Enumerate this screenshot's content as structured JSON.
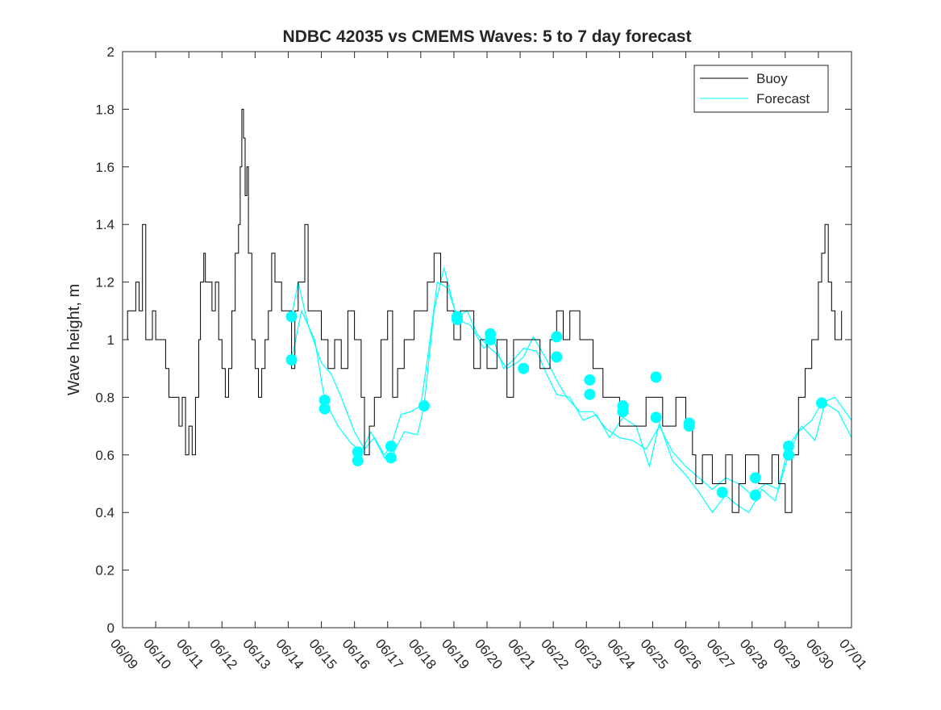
{
  "chart_data": {
    "type": "line",
    "title": "NDBC 42035 vs CMEMS Waves: 5 to 7 day forecast",
    "xlabel": "",
    "ylabel": "Wave height, m",
    "xlim": [
      "06/09",
      "07/01"
    ],
    "ylim": [
      0,
      2
    ],
    "x_tick_labels": [
      "06/09",
      "06/10",
      "06/11",
      "06/12",
      "06/13",
      "06/14",
      "06/15",
      "06/16",
      "06/17",
      "06/18",
      "06/19",
      "06/20",
      "06/21",
      "06/22",
      "06/23",
      "06/24",
      "06/25",
      "06/26",
      "06/27",
      "06/28",
      "06/29",
      "06/30",
      "07/01"
    ],
    "y_ticks": [
      0,
      0.2,
      0.4,
      0.6,
      0.8,
      1,
      1.2,
      1.4,
      1.6,
      1.8,
      2
    ],
    "y_tick_labels": [
      "0",
      "0.2",
      "0.4",
      "0.6",
      "0.8",
      "1",
      "1.2",
      "1.4",
      "1.6",
      "1.8",
      "2"
    ],
    "grid": false,
    "legend": {
      "position": "top-right",
      "entries": [
        "Buoy",
        "Forecast"
      ]
    },
    "colors": {
      "buoy": "#000000",
      "forecast": "#00ffff"
    },
    "series": [
      {
        "name": "Buoy",
        "x_unit": "days since 06/09",
        "points": [
          [
            0,
            1.0
          ],
          [
            0.15,
            1.1
          ],
          [
            0.4,
            1.2
          ],
          [
            0.5,
            1.1
          ],
          [
            0.6,
            1.4
          ],
          [
            0.7,
            1.0
          ],
          [
            0.9,
            1.1
          ],
          [
            1.0,
            1.0
          ],
          [
            1.2,
            1.0
          ],
          [
            1.3,
            0.9
          ],
          [
            1.4,
            0.8
          ],
          [
            1.6,
            0.8
          ],
          [
            1.7,
            0.7
          ],
          [
            1.8,
            0.8
          ],
          [
            1.9,
            0.6
          ],
          [
            2.0,
            0.7
          ],
          [
            2.1,
            0.6
          ],
          [
            2.2,
            0.8
          ],
          [
            2.3,
            1.0
          ],
          [
            2.35,
            1.2
          ],
          [
            2.45,
            1.3
          ],
          [
            2.5,
            1.2
          ],
          [
            2.6,
            1.2
          ],
          [
            2.7,
            1.1
          ],
          [
            2.8,
            1.2
          ],
          [
            2.9,
            1.0
          ],
          [
            3.0,
            0.9
          ],
          [
            3.1,
            0.8
          ],
          [
            3.2,
            0.9
          ],
          [
            3.3,
            1.1
          ],
          [
            3.4,
            1.3
          ],
          [
            3.5,
            1.4
          ],
          [
            3.55,
            1.6
          ],
          [
            3.6,
            1.8
          ],
          [
            3.65,
            1.7
          ],
          [
            3.7,
            1.5
          ],
          [
            3.75,
            1.6
          ],
          [
            3.8,
            1.3
          ],
          [
            3.9,
            1.0
          ],
          [
            4.0,
            0.9
          ],
          [
            4.1,
            0.8
          ],
          [
            4.2,
            0.9
          ],
          [
            4.3,
            1.0
          ],
          [
            4.4,
            1.1
          ],
          [
            4.5,
            1.3
          ],
          [
            4.6,
            1.2
          ],
          [
            4.8,
            1.1
          ],
          [
            5.0,
            1.1
          ],
          [
            5.1,
            0.9
          ],
          [
            5.2,
            1.1
          ],
          [
            5.3,
            1.2
          ],
          [
            5.4,
            1.2
          ],
          [
            5.5,
            1.4
          ],
          [
            5.6,
            1.1
          ],
          [
            5.8,
            1.1
          ],
          [
            6.0,
            1.0
          ],
          [
            6.2,
            0.9
          ],
          [
            6.4,
            1.0
          ],
          [
            6.6,
            0.9
          ],
          [
            6.8,
            1.1
          ],
          [
            7.0,
            1.0
          ],
          [
            7.2,
            0.8
          ],
          [
            7.3,
            0.6
          ],
          [
            7.45,
            0.7
          ],
          [
            7.6,
            0.8
          ],
          [
            7.8,
            1.0
          ],
          [
            8.0,
            1.1
          ],
          [
            8.15,
            0.8
          ],
          [
            8.3,
            0.9
          ],
          [
            8.5,
            1.0
          ],
          [
            8.8,
            1.1
          ],
          [
            9.0,
            1.1
          ],
          [
            9.2,
            1.2
          ],
          [
            9.4,
            1.3
          ],
          [
            9.6,
            1.2
          ],
          [
            9.8,
            1.1
          ],
          [
            10.0,
            1.0
          ],
          [
            10.2,
            1.1
          ],
          [
            10.4,
            1.1
          ],
          [
            10.6,
            0.9
          ],
          [
            10.8,
            1.0
          ],
          [
            11.0,
            0.9
          ],
          [
            11.3,
            1.0
          ],
          [
            11.5,
            1.0
          ],
          [
            11.6,
            0.8
          ],
          [
            11.8,
            1.0
          ],
          [
            12.0,
            1.0
          ],
          [
            12.3,
            1.0
          ],
          [
            12.6,
            0.9
          ],
          [
            12.9,
            1.0
          ],
          [
            13.1,
            1.1
          ],
          [
            13.3,
            1.0
          ],
          [
            13.5,
            1.1
          ],
          [
            13.8,
            1.0
          ],
          [
            14.0,
            1.0
          ],
          [
            14.2,
            0.9
          ],
          [
            14.5,
            0.8
          ],
          [
            14.8,
            0.8
          ],
          [
            15.0,
            0.7
          ],
          [
            15.3,
            0.7
          ],
          [
            15.5,
            0.7
          ],
          [
            15.8,
            0.8
          ],
          [
            16.0,
            0.8
          ],
          [
            16.3,
            0.7
          ],
          [
            16.5,
            0.7
          ],
          [
            16.7,
            0.8
          ],
          [
            17.0,
            0.7
          ],
          [
            17.2,
            0.6
          ],
          [
            17.3,
            0.5
          ],
          [
            17.5,
            0.6
          ],
          [
            17.8,
            0.5
          ],
          [
            18.0,
            0.5
          ],
          [
            18.2,
            0.6
          ],
          [
            18.4,
            0.4
          ],
          [
            18.6,
            0.5
          ],
          [
            18.8,
            0.6
          ],
          [
            19.0,
            0.6
          ],
          [
            19.2,
            0.5
          ],
          [
            19.4,
            0.5
          ],
          [
            19.6,
            0.6
          ],
          [
            19.8,
            0.5
          ],
          [
            20.0,
            0.4
          ],
          [
            20.2,
            0.6
          ],
          [
            20.4,
            0.8
          ],
          [
            20.6,
            0.9
          ],
          [
            20.8,
            1.0
          ],
          [
            21.0,
            1.2
          ],
          [
            21.1,
            1.3
          ],
          [
            21.2,
            1.4
          ],
          [
            21.3,
            1.2
          ],
          [
            21.4,
            1.1
          ],
          [
            21.5,
            1.0
          ],
          [
            21.6,
            1.0
          ],
          [
            21.7,
            1.1
          ]
        ]
      },
      {
        "name": "Forecast",
        "x_unit": "days since 06/09",
        "points": [
          [
            5.1,
            1.08
          ],
          [
            5.3,
            1.2
          ],
          [
            5.6,
            1.05
          ],
          [
            6.0,
            0.92
          ],
          [
            6.3,
            0.88
          ],
          [
            6.6,
            0.8
          ],
          [
            7.0,
            0.68
          ],
          [
            7.3,
            0.62
          ],
          [
            7.6,
            0.66
          ],
          [
            7.9,
            0.6
          ],
          [
            8.1,
            0.63
          ],
          [
            8.4,
            0.74
          ],
          [
            8.7,
            0.75
          ],
          [
            9.0,
            0.77
          ],
          [
            9.2,
            0.93
          ],
          [
            9.5,
            1.2
          ],
          [
            9.8,
            1.18
          ],
          [
            10.1,
            1.08
          ],
          [
            10.4,
            1.1
          ],
          [
            10.7,
            1.02
          ],
          [
            11.0,
            0.98
          ],
          [
            11.3,
            0.95
          ],
          [
            11.6,
            0.9
          ],
          [
            11.9,
            0.92
          ],
          [
            12.1,
            0.94
          ],
          [
            12.4,
            1.01
          ],
          [
            12.8,
            0.93
          ],
          [
            13.1,
            0.86
          ],
          [
            13.4,
            0.8
          ],
          [
            13.8,
            0.75
          ],
          [
            14.2,
            0.75
          ],
          [
            14.6,
            0.69
          ],
          [
            15.0,
            0.66
          ],
          [
            15.4,
            0.65
          ],
          [
            15.8,
            0.62
          ],
          [
            16.2,
            0.7
          ],
          [
            16.6,
            0.61
          ],
          [
            17.0,
            0.56
          ],
          [
            17.4,
            0.52
          ],
          [
            17.8,
            0.48
          ],
          [
            18.2,
            0.52
          ],
          [
            18.6,
            0.5
          ],
          [
            19.0,
            0.46
          ],
          [
            19.4,
            0.5
          ],
          [
            19.8,
            0.48
          ],
          [
            20.1,
            0.6
          ],
          [
            20.4,
            0.68
          ],
          [
            20.8,
            0.72
          ],
          [
            21.1,
            0.78
          ],
          [
            21.5,
            0.8
          ],
          [
            22.0,
            0.72
          ]
        ]
      },
      {
        "name": "Forecast",
        "x_unit": "days since 06/09",
        "points": [
          [
            5.1,
            0.93
          ],
          [
            5.4,
            1.1
          ],
          [
            5.8,
            1.0
          ],
          [
            6.1,
            0.79
          ],
          [
            6.5,
            0.7
          ],
          [
            6.9,
            0.64
          ],
          [
            7.2,
            0.61
          ],
          [
            7.5,
            0.68
          ],
          [
            7.9,
            0.59
          ],
          [
            8.1,
            0.59
          ],
          [
            8.5,
            0.68
          ],
          [
            8.9,
            0.67
          ],
          [
            9.1,
            0.77
          ],
          [
            9.4,
            1.1
          ],
          [
            9.7,
            1.25
          ],
          [
            10.1,
            1.07
          ],
          [
            10.5,
            1.05
          ],
          [
            10.9,
            0.97
          ],
          [
            11.2,
            1.0
          ],
          [
            11.5,
            0.9
          ],
          [
            11.8,
            0.93
          ],
          [
            12.1,
            0.97
          ],
          [
            12.5,
            0.96
          ],
          [
            12.8,
            0.88
          ],
          [
            13.1,
            0.81
          ],
          [
            13.5,
            0.8
          ],
          [
            13.9,
            0.72
          ],
          [
            14.3,
            0.74
          ],
          [
            14.7,
            0.66
          ],
          [
            15.1,
            0.73
          ],
          [
            15.5,
            0.7
          ],
          [
            15.9,
            0.56
          ],
          [
            16.2,
            0.71
          ],
          [
            16.6,
            0.58
          ],
          [
            17.0,
            0.53
          ],
          [
            17.4,
            0.47
          ],
          [
            17.8,
            0.4
          ],
          [
            18.2,
            0.46
          ],
          [
            18.5,
            0.43
          ],
          [
            18.9,
            0.4
          ],
          [
            19.3,
            0.48
          ],
          [
            19.7,
            0.44
          ],
          [
            20.1,
            0.63
          ],
          [
            20.5,
            0.7
          ],
          [
            20.9,
            0.65
          ],
          [
            21.2,
            0.78
          ],
          [
            21.6,
            0.75
          ],
          [
            22.0,
            0.66
          ]
        ]
      }
    ],
    "forecast_markers": {
      "name": "Forecast",
      "x_unit": "days since 06/09",
      "points": [
        [
          5.1,
          1.08
        ],
        [
          5.1,
          0.93
        ],
        [
          6.1,
          0.79
        ],
        [
          6.1,
          0.76
        ],
        [
          7.1,
          0.61
        ],
        [
          7.1,
          0.58
        ],
        [
          8.1,
          0.63
        ],
        [
          8.1,
          0.59
        ],
        [
          9.1,
          0.77
        ],
        [
          10.1,
          1.08
        ],
        [
          10.1,
          1.07
        ],
        [
          11.1,
          1.02
        ],
        [
          11.1,
          1.0
        ],
        [
          12.1,
          0.9
        ],
        [
          13.1,
          1.01
        ],
        [
          13.1,
          0.94
        ],
        [
          14.1,
          0.86
        ],
        [
          14.1,
          0.81
        ],
        [
          15.1,
          0.77
        ],
        [
          15.1,
          0.75
        ],
        [
          16.1,
          0.87
        ],
        [
          16.1,
          0.73
        ],
        [
          17.1,
          0.71
        ],
        [
          17.1,
          0.7
        ],
        [
          18.1,
          0.47
        ],
        [
          19.1,
          0.52
        ],
        [
          19.1,
          0.46
        ],
        [
          20.1,
          0.63
        ],
        [
          20.1,
          0.6
        ],
        [
          21.1,
          0.78
        ]
      ]
    }
  }
}
